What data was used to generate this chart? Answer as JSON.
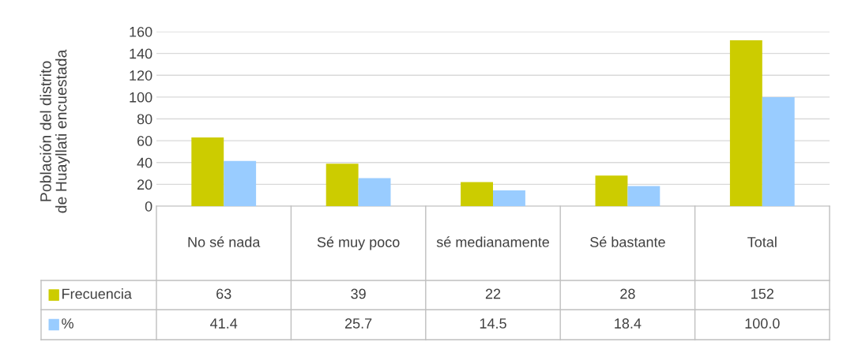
{
  "chart_data": {
    "type": "bar",
    "ylabel": "Población del distrito de Huayllati encuestada",
    "categories": [
      "No sé nada",
      "Sé muy poco",
      "sé medianamente",
      "Sé bastante",
      "Total"
    ],
    "series": [
      {
        "name": "Frecuencia",
        "color": "#cccc00",
        "values": [
          63,
          39,
          22,
          28,
          152
        ],
        "value_labels": [
          "63",
          "39",
          "22",
          "28",
          "152"
        ]
      },
      {
        "name": "%",
        "color": "#99ccff",
        "values": [
          41.4,
          25.7,
          14.5,
          18.4,
          100.0
        ],
        "value_labels": [
          "41.4",
          "25.7",
          "14.5",
          "18.4",
          "100.0"
        ]
      }
    ],
    "ylim": [
      0,
      160
    ],
    "yticks": [
      0,
      20,
      40,
      60,
      80,
      100,
      120,
      140,
      160
    ],
    "grid": "y",
    "legend": "bottom left"
  }
}
